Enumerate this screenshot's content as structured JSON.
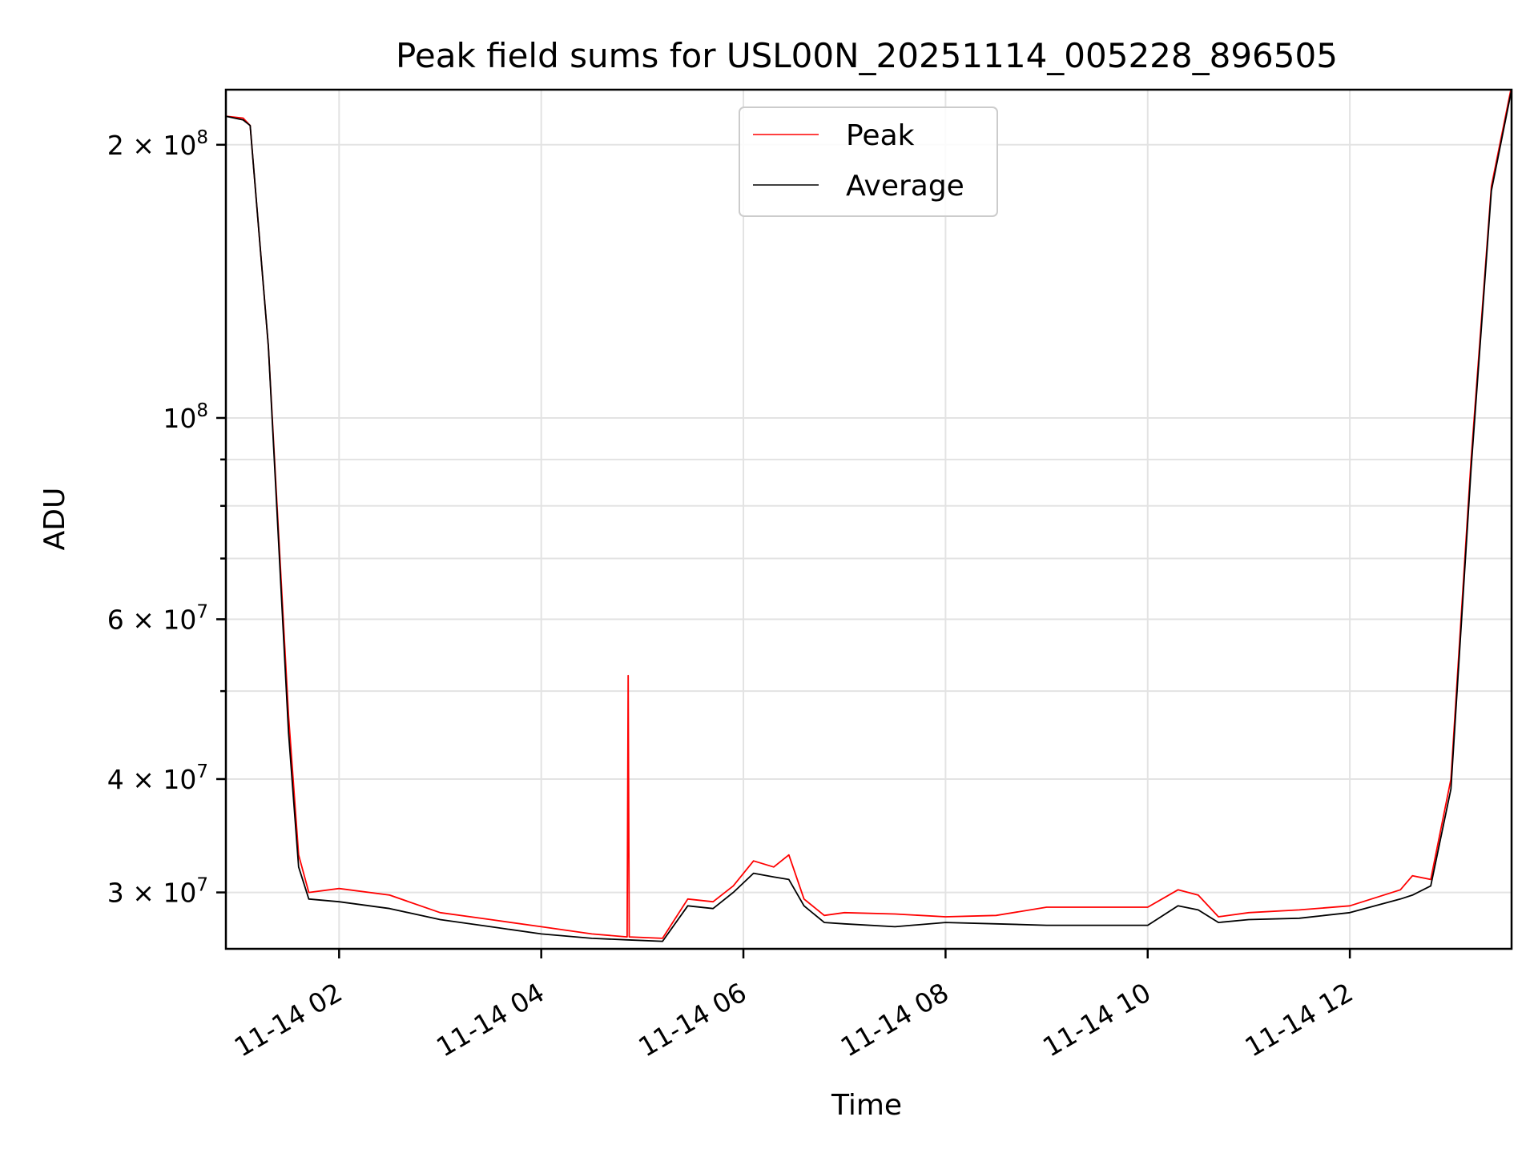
{
  "chart_data": {
    "type": "line",
    "title": "Peak field sums for USL00N_20251114_005228_896505",
    "xlabel": "Time",
    "ylabel": "ADU",
    "yscale": "log",
    "xlim_hours": [
      0.88,
      13.6
    ],
    "ylim": [
      26000000,
      230000000
    ],
    "grid": true,
    "legend_position": "upper center",
    "x_ticks": [
      {
        "hours": 2,
        "label": "11-14 02"
      },
      {
        "hours": 4,
        "label": "11-14 04"
      },
      {
        "hours": 6,
        "label": "11-14 06"
      },
      {
        "hours": 8,
        "label": "11-14 08"
      },
      {
        "hours": 10,
        "label": "11-14 10"
      },
      {
        "hours": 12,
        "label": "11-14 12"
      }
    ],
    "y_ticks": [
      {
        "value": 200000000,
        "mantissa": "2",
        "exponent": "8"
      },
      {
        "value": 100000000,
        "mantissa": "",
        "exponent": "8"
      },
      {
        "value": 60000000,
        "mantissa": "6",
        "exponent": "7"
      },
      {
        "value": 40000000,
        "mantissa": "4",
        "exponent": "7"
      },
      {
        "value": 30000000,
        "mantissa": "3",
        "exponent": "7"
      }
    ],
    "y_minor_ticks": [
      90000000,
      80000000,
      70000000,
      50000000
    ],
    "series": [
      {
        "name": "Peak",
        "color": "#ff0000",
        "points": [
          [
            0.88,
            215000000
          ],
          [
            1.05,
            214000000
          ],
          [
            1.12,
            210000000
          ],
          [
            1.3,
            120000000
          ],
          [
            1.5,
            47000000
          ],
          [
            1.6,
            33000000
          ],
          [
            1.7,
            30000000
          ],
          [
            2.0,
            30300000
          ],
          [
            2.5,
            29800000
          ],
          [
            3.0,
            28500000
          ],
          [
            3.5,
            28000000
          ],
          [
            4.0,
            27500000
          ],
          [
            4.5,
            27000000
          ],
          [
            4.85,
            26800000
          ],
          [
            4.86,
            52000000
          ],
          [
            4.87,
            26800000
          ],
          [
            5.2,
            26700000
          ],
          [
            5.45,
            29500000
          ],
          [
            5.7,
            29300000
          ],
          [
            5.9,
            30500000
          ],
          [
            6.1,
            32500000
          ],
          [
            6.3,
            32000000
          ],
          [
            6.45,
            33000000
          ],
          [
            6.6,
            29500000
          ],
          [
            6.8,
            28300000
          ],
          [
            7.0,
            28500000
          ],
          [
            7.5,
            28400000
          ],
          [
            8.0,
            28200000
          ],
          [
            8.5,
            28300000
          ],
          [
            9.0,
            28900000
          ],
          [
            9.5,
            28900000
          ],
          [
            10.0,
            28900000
          ],
          [
            10.3,
            30200000
          ],
          [
            10.5,
            29800000
          ],
          [
            10.7,
            28200000
          ],
          [
            11.0,
            28500000
          ],
          [
            11.5,
            28700000
          ],
          [
            12.0,
            29000000
          ],
          [
            12.5,
            30200000
          ],
          [
            12.62,
            31300000
          ],
          [
            12.8,
            31000000
          ],
          [
            13.0,
            40000000
          ],
          [
            13.2,
            90000000
          ],
          [
            13.4,
            180000000
          ],
          [
            13.6,
            232000000
          ]
        ]
      },
      {
        "name": "Average",
        "color": "#000000",
        "points": [
          [
            0.88,
            215000000
          ],
          [
            1.05,
            213000000
          ],
          [
            1.12,
            210000000
          ],
          [
            1.3,
            120000000
          ],
          [
            1.5,
            45000000
          ],
          [
            1.6,
            32000000
          ],
          [
            1.7,
            29500000
          ],
          [
            2.0,
            29300000
          ],
          [
            2.5,
            28800000
          ],
          [
            3.0,
            28000000
          ],
          [
            3.5,
            27500000
          ],
          [
            4.0,
            27000000
          ],
          [
            4.5,
            26700000
          ],
          [
            4.85,
            26600000
          ],
          [
            5.2,
            26500000
          ],
          [
            5.45,
            29000000
          ],
          [
            5.7,
            28800000
          ],
          [
            5.9,
            30000000
          ],
          [
            6.1,
            31500000
          ],
          [
            6.3,
            31200000
          ],
          [
            6.45,
            31000000
          ],
          [
            6.6,
            29000000
          ],
          [
            6.8,
            27800000
          ],
          [
            7.0,
            27700000
          ],
          [
            7.5,
            27500000
          ],
          [
            8.0,
            27800000
          ],
          [
            8.5,
            27700000
          ],
          [
            9.0,
            27600000
          ],
          [
            9.5,
            27600000
          ],
          [
            10.0,
            27600000
          ],
          [
            10.3,
            29000000
          ],
          [
            10.5,
            28700000
          ],
          [
            10.7,
            27800000
          ],
          [
            11.0,
            28000000
          ],
          [
            11.5,
            28100000
          ],
          [
            12.0,
            28500000
          ],
          [
            12.5,
            29500000
          ],
          [
            12.62,
            29800000
          ],
          [
            12.8,
            30500000
          ],
          [
            13.0,
            39000000
          ],
          [
            13.2,
            88000000
          ],
          [
            13.4,
            178000000
          ],
          [
            13.6,
            230000000
          ]
        ]
      }
    ]
  }
}
